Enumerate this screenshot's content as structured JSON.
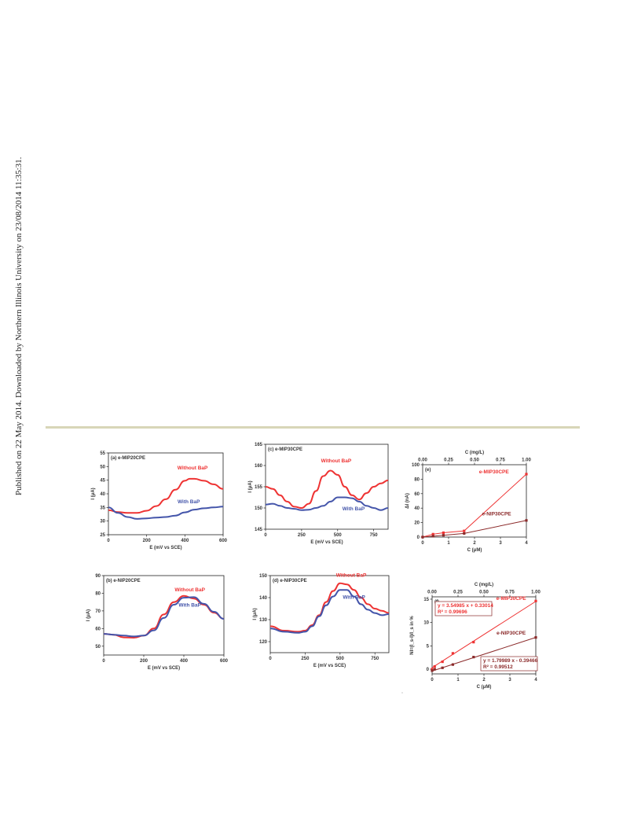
{
  "sidebar_text": "Published on 22 May 2014. Downloaded by Northern Illinois University on 23/08/2014 11:35:31.",
  "colors": {
    "red": "#ee3333",
    "blue": "#4455aa",
    "darkred": "#8b2a2a",
    "frame": "#222222"
  },
  "chart_data": [
    {
      "id": "a",
      "type": "line",
      "title": "(a) e-MIP20CPE",
      "xlabel": "E (mV vs SCE)",
      "ylabel": "I (μA)",
      "xlim": [
        0,
        600
      ],
      "ylim": [
        25,
        55
      ],
      "xticks": [
        0,
        200,
        400,
        600
      ],
      "yticks": [
        25,
        30,
        35,
        40,
        45,
        50,
        55
      ],
      "series": [
        {
          "name": "Without BaP",
          "color": "#ee3333",
          "x": [
            0,
            50,
            100,
            150,
            200,
            250,
            300,
            350,
            400,
            425,
            450,
            500,
            550,
            600
          ],
          "y": [
            34,
            33.3,
            33,
            33,
            33.8,
            35.5,
            38,
            41.5,
            44.8,
            45.5,
            45.5,
            44.8,
            43.5,
            41.8
          ]
        },
        {
          "name": "With BaP",
          "color": "#4455aa",
          "x": [
            0,
            50,
            100,
            150,
            200,
            250,
            300,
            350,
            400,
            450,
            500,
            550,
            600
          ],
          "y": [
            35,
            33,
            31.5,
            30.8,
            31,
            31.3,
            31.5,
            32,
            33.2,
            34.2,
            34.7,
            35,
            35.3
          ]
        }
      ],
      "labels": [
        {
          "text": "Without BaP",
          "x": 440,
          "y": 49,
          "series": 0
        },
        {
          "text": "With BaP",
          "x": 420,
          "y": 36.6,
          "series": 1
        }
      ]
    },
    {
      "id": "b",
      "type": "line",
      "title": "(b) e-NIP20CPE",
      "xlabel": "E (mV vs SCE)",
      "ylabel": "I (μA)",
      "xlim": [
        0,
        600
      ],
      "ylim": [
        45,
        90
      ],
      "xticks": [
        0,
        200,
        400,
        600
      ],
      "yticks": [
        50,
        60,
        70,
        80,
        90
      ],
      "series": [
        {
          "name": "Without BaP",
          "color": "#ee3333",
          "x": [
            0,
            50,
            100,
            150,
            200,
            250,
            300,
            350,
            400,
            450,
            500,
            550,
            600
          ],
          "y": [
            57,
            56.5,
            55,
            54.8,
            56,
            60,
            68,
            75,
            78.5,
            77,
            73.5,
            69,
            65.5
          ]
        },
        {
          "name": "With BaP",
          "color": "#4455aa",
          "x": [
            0,
            50,
            100,
            150,
            200,
            250,
            300,
            350,
            400,
            450,
            500,
            550,
            600
          ],
          "y": [
            57,
            56.5,
            56,
            55.5,
            56,
            59,
            66,
            73.5,
            77.5,
            77.8,
            74,
            69.5,
            65.5
          ]
        }
      ],
      "labels": [
        {
          "text": "Without BaP",
          "x": 430,
          "y": 81,
          "series": 0
        },
        {
          "text": "With BaP",
          "x": 430,
          "y": 72.5,
          "series": 1
        }
      ]
    },
    {
      "id": "c",
      "type": "line",
      "title": "(c) e-MIP30CPE",
      "xlabel": "E (mV vs SCE)",
      "ylabel": "I (μA)",
      "xlim": [
        0,
        850
      ],
      "ylim": [
        145,
        165
      ],
      "xticks": [
        0,
        250,
        500,
        750
      ],
      "yticks": [
        145,
        150,
        155,
        160,
        165
      ],
      "series": [
        {
          "name": "Without BaP",
          "color": "#ee3333",
          "x": [
            0,
            50,
            100,
            150,
            200,
            250,
            300,
            350,
            400,
            450,
            500,
            550,
            600,
            650,
            700,
            750,
            800,
            850
          ],
          "y": [
            155,
            154.5,
            153,
            151.5,
            150.3,
            150,
            151,
            154,
            157.5,
            158.8,
            157.8,
            155,
            153,
            152,
            153.5,
            155,
            155.8,
            156.5
          ]
        },
        {
          "name": "With BaP",
          "color": "#4455aa",
          "x": [
            0,
            50,
            100,
            150,
            200,
            250,
            300,
            350,
            400,
            450,
            500,
            550,
            600,
            650,
            700,
            750,
            800,
            850
          ],
          "y": [
            150.8,
            151,
            150.5,
            150,
            149.8,
            149.5,
            149.6,
            150,
            150.5,
            151.5,
            152.5,
            152.5,
            152.3,
            151.5,
            150.5,
            150,
            149.5,
            150
          ]
        }
      ],
      "labels": [
        {
          "text": "Without BaP",
          "x": 490,
          "y": 160.7,
          "series": 0
        },
        {
          "text": "With BaP",
          "x": 610,
          "y": 149.4,
          "series": 1
        }
      ]
    },
    {
      "id": "d",
      "type": "line",
      "title": "(d) e-NIP30CPE",
      "xlabel": "E (mV vs SCE)",
      "ylabel": "I (μA)",
      "xlim": [
        0,
        850
      ],
      "ylim": [
        115,
        150
      ],
      "xticks": [
        0,
        250,
        500,
        750
      ],
      "yticks": [
        120,
        130,
        140,
        150
      ],
      "series": [
        {
          "name": "Without BaP",
          "color": "#ee3333",
          "x": [
            0,
            100,
            200,
            250,
            300,
            350,
            400,
            450,
            500,
            550,
            600,
            650,
            700,
            750,
            800,
            850
          ],
          "y": [
            127,
            125,
            124.5,
            125,
            127.5,
            132,
            138,
            143,
            146.5,
            146,
            143.5,
            140,
            137,
            135,
            134,
            133
          ]
        },
        {
          "name": "With BaP",
          "color": "#4455aa",
          "x": [
            0,
            100,
            200,
            250,
            300,
            350,
            400,
            450,
            500,
            550,
            600,
            650,
            700,
            750,
            800,
            850
          ],
          "y": [
            126,
            124.5,
            124,
            124.5,
            127,
            131.5,
            136.5,
            140.5,
            143.5,
            143.5,
            140.5,
            137,
            134.5,
            133,
            132,
            132.5
          ]
        }
      ],
      "labels": [
        {
          "text": "Without BaP",
          "x": 580,
          "y": 149.5,
          "series": 0
        },
        {
          "text": "With BaP",
          "x": 600,
          "y": 139.5,
          "series": 1
        }
      ]
    },
    {
      "id": "e",
      "type": "scatter",
      "title": "(e)",
      "xlabel": "C (μM)",
      "ylabel": "ΔI (nA)",
      "x2label": "C (mg/L)",
      "xlim": [
        0,
        4
      ],
      "ylim": [
        0,
        100
      ],
      "x2lim": [
        0,
        1
      ],
      "xticks": [
        0,
        1,
        2,
        3,
        4
      ],
      "yticks": [
        0,
        20,
        40,
        60,
        80,
        100
      ],
      "x2ticks": [
        "0.00",
        "0.25",
        "0.50",
        "0.75",
        "1.00"
      ],
      "series": [
        {
          "name": "e-MIP30CPE",
          "color": "#ee3333",
          "x": [
            0,
            0.4,
            0.8,
            1.6,
            4
          ],
          "y": [
            0,
            4,
            6,
            8.5,
            87
          ]
        },
        {
          "name": "e-NIP30CPE",
          "color": "#8b2a2a",
          "x": [
            0,
            0.4,
            0.8,
            1.6,
            4
          ],
          "y": [
            0,
            1.2,
            2.5,
            5,
            23
          ]
        }
      ],
      "labels": [
        {
          "text": "e-MIP30CPE",
          "x": 2.75,
          "y": 88,
          "series": 0
        },
        {
          "text": "e-NIP30CPE",
          "x": 2.85,
          "y": 30,
          "series": 1
        }
      ]
    },
    {
      "id": "f",
      "type": "scatter",
      "title": "(f)",
      "xlabel": "C (μM)",
      "ylabel": "NI=(I_s-I)/I_s in %",
      "x2label": "C (mg/L)",
      "xlim": [
        0,
        4
      ],
      "ylim": [
        -1,
        15.5
      ],
      "x2lim": [
        0,
        1
      ],
      "xticks": [
        0,
        1,
        2,
        3,
        4
      ],
      "yticks": [
        0,
        5,
        10,
        15
      ],
      "x2ticks": [
        "0.00",
        "0.25",
        "0.50",
        "0.75",
        "1.00"
      ],
      "series": [
        {
          "name": "e-MIP30CPE",
          "color": "#ee3333",
          "x": [
            0,
            0.1,
            0.4,
            0.8,
            1.6,
            4
          ],
          "y": [
            0,
            0.6,
            1.6,
            3.4,
            5.8,
            14.6
          ]
        },
        {
          "name": "e-NIP30CPE",
          "color": "#8b2a2a",
          "x": [
            0,
            0.1,
            0.4,
            0.8,
            1.6,
            4
          ],
          "y": [
            -0.3,
            0,
            0.3,
            1,
            2.6,
            6.8
          ]
        }
      ],
      "fits": [
        {
          "slope": 3.54985,
          "intercept": 0.33014,
          "series": 0
        },
        {
          "slope": 1.79989,
          "intercept": -0.39466,
          "series": 1
        }
      ],
      "labels": [
        {
          "text": "e-MIP30CPE",
          "x": 3.05,
          "y": 14.8,
          "series": 0
        },
        {
          "text": "e-NIP30CPE",
          "x": 3.05,
          "y": 7.4,
          "series": 1
        }
      ],
      "equations": [
        {
          "line1": "y = 3.54985 x + 0.33014",
          "line2": "R² = 0.99696",
          "series": 0
        },
        {
          "line1": "y = 1.79989 x - 0.39466",
          "line2": "R² = 0.99512",
          "series": 1
        }
      ]
    }
  ]
}
